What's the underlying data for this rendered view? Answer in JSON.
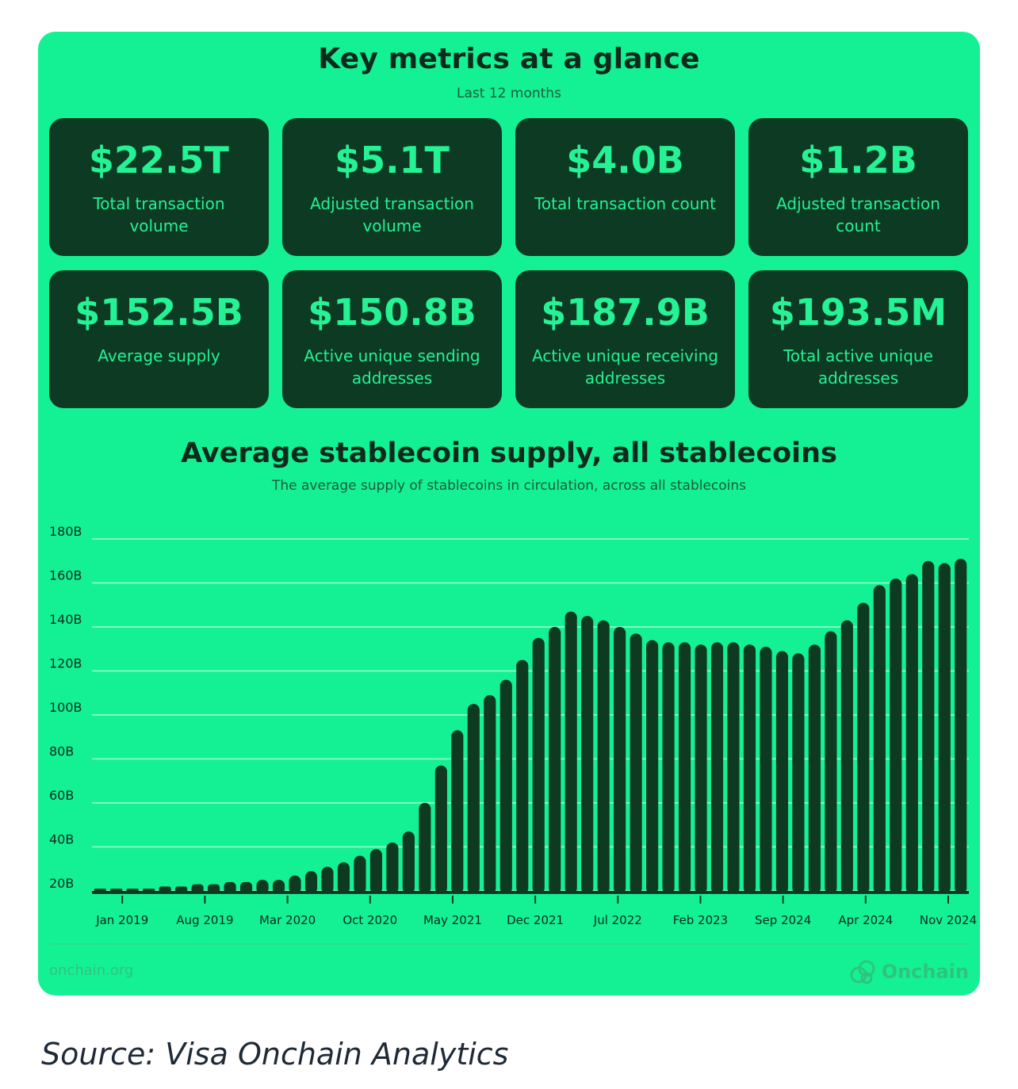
{
  "header": {
    "title": "Key metrics at a glance",
    "subtitle": "Last 12 months"
  },
  "metrics": [
    {
      "value": "$22.5T",
      "label": "Total transaction volume"
    },
    {
      "value": "$5.1T",
      "label": "Adjusted transaction volume"
    },
    {
      "value": "$4.0B",
      "label": "Total transaction count"
    },
    {
      "value": "$1.2B",
      "label": "Adjusted transaction count"
    },
    {
      "value": "$152.5B",
      "label": "Average supply"
    },
    {
      "value": "$150.8B",
      "label": "Active unique sending addresses"
    },
    {
      "value": "$187.9B",
      "label": "Active unique receiving addresses"
    },
    {
      "value": "$193.5M",
      "label": "Total active unique addresses"
    }
  ],
  "chart_data": {
    "type": "bar",
    "title": "Average stablecoin supply, all stablecoins",
    "subtitle": "The average supply of stablecoins in circulation, across all stablecoins",
    "xlabel": "",
    "ylabel": "",
    "ylim": [
      20,
      180
    ],
    "yticks": [
      "20B",
      "40B",
      "60B",
      "80B",
      "100B",
      "120B",
      "140B",
      "160B",
      "180B"
    ],
    "yticks_values": [
      20,
      40,
      60,
      80,
      100,
      120,
      140,
      160,
      180
    ],
    "xtick_labels": [
      "Jan 2019",
      "Aug 2019",
      "Mar 2020",
      "Oct 2020",
      "May 2021",
      "Dec 2021",
      "Jul 2022",
      "Feb 2023",
      "Sep 2024",
      "Apr 2024",
      "Nov 2024"
    ],
    "grid": true,
    "series": [
      {
        "name": "Average supply",
        "values": [
          21,
          21,
          21,
          21,
          22,
          22,
          23,
          23,
          24,
          24,
          25,
          25,
          27,
          29,
          31,
          33,
          36,
          39,
          42,
          47,
          60,
          77,
          93,
          105,
          109,
          116,
          125,
          135,
          140,
          147,
          145,
          143,
          140,
          137,
          134,
          133,
          133,
          132,
          133,
          133,
          132,
          131,
          129,
          128,
          132,
          138,
          143,
          151,
          159,
          162,
          164,
          170,
          169,
          171
        ]
      }
    ]
  },
  "footer": {
    "left": "onchain.org",
    "brand": "Onchain",
    "logo_icon": "onchain-logo-icon"
  },
  "source": "Source: Visa Onchain Analytics",
  "colors": {
    "background": "#14F195",
    "panel": "#0D3A22",
    "bar": "#0F3A22",
    "grid": "#7FF7C0"
  }
}
